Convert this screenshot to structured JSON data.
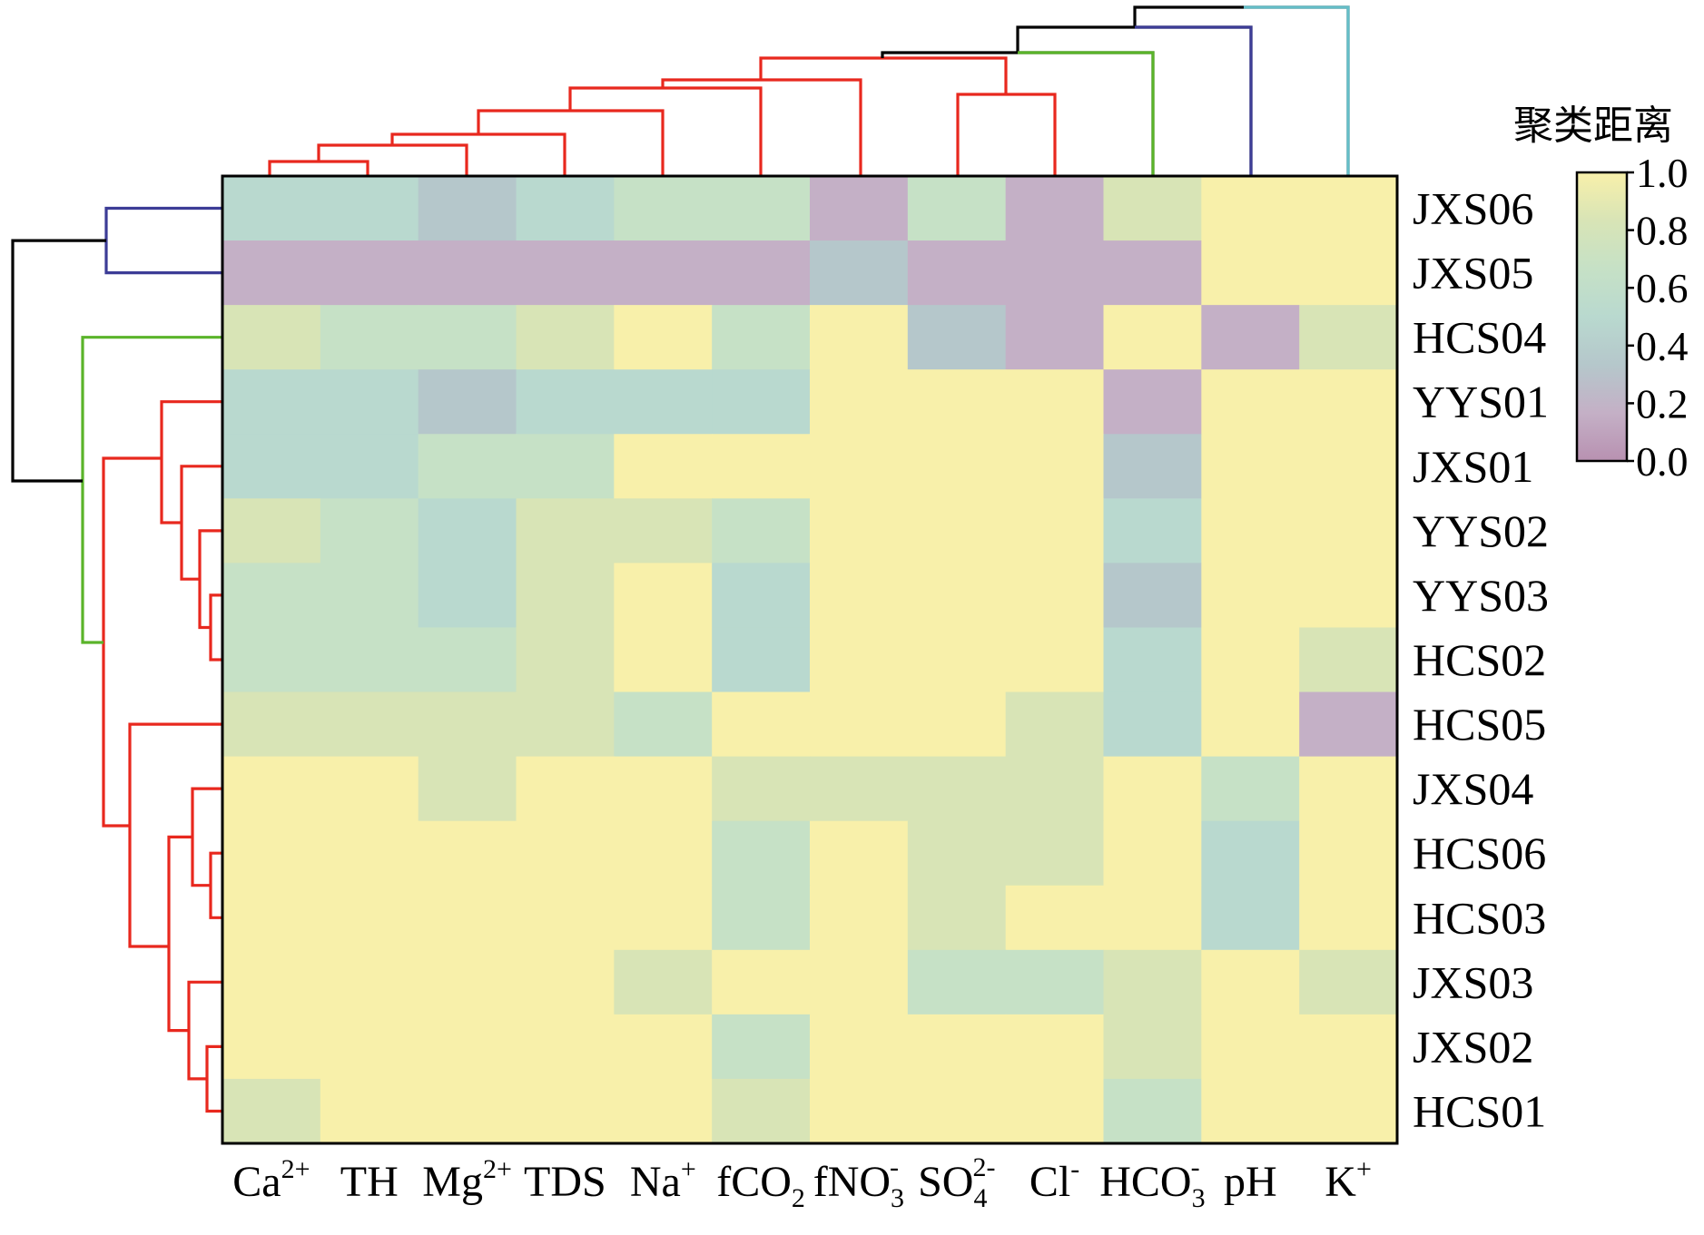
{
  "chart_data": {
    "type": "heatmap",
    "title": "",
    "xlabel": "",
    "ylabel": "",
    "colorbar": {
      "title": "聚类距离",
      "range": [
        0,
        1
      ],
      "ticks": [
        "1.0",
        "0.8",
        "0.6",
        "0.4",
        "0.2",
        "0.0"
      ],
      "colors": [
        "#b891b1",
        "#c4b0c6",
        "#b5c7cb",
        "#b9d9cf",
        "#c6e1c6",
        "#d8e4b6",
        "#f8f0aa"
      ]
    },
    "columns": [
      {
        "base": "Ca",
        "sup": "2+",
        "sub": ""
      },
      {
        "base": "TH",
        "sup": "",
        "sub": ""
      },
      {
        "base": "Mg",
        "sup": "2+",
        "sub": ""
      },
      {
        "base": "TDS",
        "sup": "",
        "sub": ""
      },
      {
        "base": "Na",
        "sup": "+",
        "sub": ""
      },
      {
        "base": "fCO",
        "sup": "",
        "sub": "2"
      },
      {
        "base": "fNO",
        "sup": "-",
        "sub": "3"
      },
      {
        "base": "SO",
        "sup": "2-",
        "sub": "4"
      },
      {
        "base": "Cl",
        "sup": "-",
        "sub": ""
      },
      {
        "base": "HCO",
        "sup": "-",
        "sub": "3"
      },
      {
        "base": "pH",
        "sup": "",
        "sub": ""
      },
      {
        "base": "K",
        "sup": "+",
        "sub": ""
      }
    ],
    "rows": [
      "JXS06",
      "JXS05",
      "HCS04",
      "YYS01",
      "JXS01",
      "YYS02",
      "YYS03",
      "HCS02",
      "HCS05",
      "JXS04",
      "HCS06",
      "HCS03",
      "JXS03",
      "JXS02",
      "HCS01"
    ],
    "values": [
      [
        0.45,
        0.45,
        0.35,
        0.45,
        0.65,
        0.65,
        0.1,
        0.65,
        0.1,
        0.75,
        1.0,
        1.0
      ],
      [
        0.1,
        0.1,
        0.1,
        0.1,
        0.1,
        0.1,
        0.3,
        0.1,
        0.1,
        0.1,
        1.0,
        1.0
      ],
      [
        0.8,
        0.65,
        0.65,
        0.8,
        1.0,
        0.65,
        1.0,
        0.3,
        0.1,
        1.0,
        0.1,
        0.8
      ],
      [
        0.55,
        0.45,
        0.35,
        0.55,
        0.45,
        0.45,
        1.0,
        1.0,
        1.0,
        0.1,
        1.0,
        1.0
      ],
      [
        0.55,
        0.55,
        0.65,
        0.65,
        1.0,
        1.0,
        1.0,
        1.0,
        1.0,
        0.35,
        1.0,
        1.0
      ],
      [
        0.8,
        0.65,
        0.55,
        0.8,
        0.8,
        0.65,
        1.0,
        1.0,
        1.0,
        0.45,
        1.0,
        1.0
      ],
      [
        0.65,
        0.65,
        0.55,
        0.8,
        1.0,
        0.45,
        1.0,
        1.0,
        1.0,
        0.35,
        1.0,
        1.0
      ],
      [
        0.65,
        0.65,
        0.65,
        0.8,
        1.0,
        0.55,
        1.0,
        1.0,
        1.0,
        0.45,
        1.0,
        0.8
      ],
      [
        0.8,
        0.8,
        0.8,
        0.8,
        0.6,
        1.0,
        1.0,
        1.0,
        0.8,
        0.55,
        1.0,
        0.1
      ],
      [
        1.0,
        1.0,
        0.8,
        1.0,
        1.0,
        0.8,
        0.8,
        0.8,
        0.8,
        1.0,
        0.65,
        1.0
      ],
      [
        1.0,
        1.0,
        1.0,
        1.0,
        1.0,
        0.6,
        1.0,
        0.8,
        0.8,
        1.0,
        0.45,
        1.0
      ],
      [
        1.0,
        1.0,
        1.0,
        1.0,
        1.0,
        0.6,
        1.0,
        0.8,
        1.0,
        1.0,
        0.55,
        1.0
      ],
      [
        1.0,
        1.0,
        1.0,
        1.0,
        0.8,
        1.0,
        1.0,
        0.65,
        0.65,
        0.8,
        1.0,
        0.8
      ],
      [
        1.0,
        1.0,
        1.0,
        1.0,
        1.0,
        0.6,
        1.0,
        1.0,
        1.0,
        0.8,
        1.0,
        1.0
      ],
      [
        0.8,
        1.0,
        1.0,
        1.0,
        1.0,
        0.75,
        1.0,
        1.0,
        1.0,
        0.6,
        1.0,
        1.0
      ]
    ],
    "dendrogram_colors": {
      "black": "#000000",
      "red": "#e8281e",
      "green": "#5ab42a",
      "navy": "#3c3c96",
      "cyan": "#64bec8"
    }
  }
}
